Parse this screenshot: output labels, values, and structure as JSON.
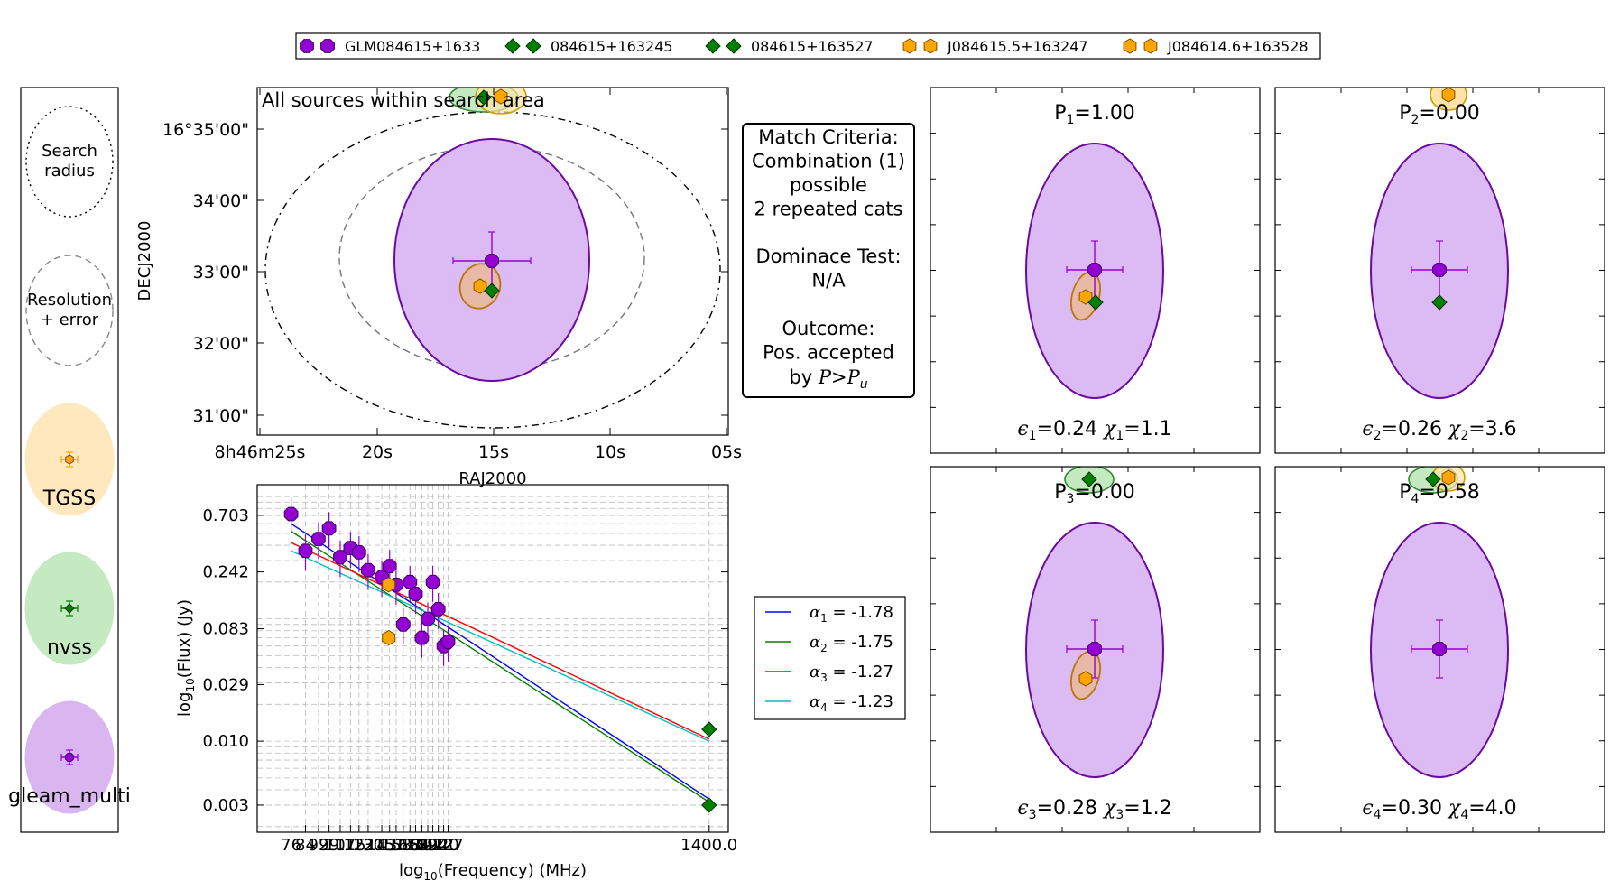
{
  "top_legend": [
    {
      "label": "GLM084615+1633",
      "marker": "octagon",
      "color": "#9400d3"
    },
    {
      "label": "084615+163245",
      "marker": "diamond",
      "color": "#008000"
    },
    {
      "label": "084615+163527",
      "marker": "diamond",
      "color": "#008000"
    },
    {
      "label": "J084615.5+163247",
      "marker": "hexagon",
      "color": "#ffa500"
    },
    {
      "label": "J084614.6+163528",
      "marker": "hexagon",
      "color": "#ffa500"
    }
  ],
  "key_panel": {
    "items": [
      {
        "label": "Search radius",
        "style": "dotted-ellipse"
      },
      {
        "label": "Resolution + error",
        "style": "dashed-ellipse"
      },
      {
        "label": "TGSS",
        "fill": "#ffe8bd",
        "marker_color": "#ffa500"
      },
      {
        "label": "nvss",
        "fill": "#c5e9c0",
        "marker_color": "#008000"
      },
      {
        "label": "gleam_multi",
        "fill": "#d9b6f0",
        "marker_color": "#9400d3"
      }
    ]
  },
  "sky_panel": {
    "annotation": "All sources within search area",
    "xlabel": "RAJ2000",
    "ylabel": "DECJ2000",
    "xticks": [
      "8h46m25s",
      "20s",
      "15s",
      "10s",
      "05s"
    ],
    "yticks": [
      "16°35'00\"",
      "34'00\"",
      "33'00\"",
      "32'00\"",
      "31'00\""
    ]
  },
  "criteria": {
    "lines_top": [
      "Match Criteria:",
      "Combination (1)",
      "possible",
      "2 repeated cats"
    ],
    "lines_mid": [
      "Dominace Test:",
      "N/A"
    ],
    "lines_bot": [
      "Outcome:",
      "Pos. accepted"
    ],
    "last_prefix": "by ",
    "last_var": "P",
    "last_op": ">",
    "last_sub": "u"
  },
  "chart_data": {
    "type": "scatter",
    "xlabel_main": "log",
    "xlabel_sub": "10",
    "xlabel_rest": "(Frequency) (MHz)",
    "ylabel_main": "log",
    "ylabel_sub": "10",
    "ylabel_rest": "(Flux) (Jy)",
    "x_tick_labels": [
      "76",
      "84",
      "92",
      "99",
      "107",
      "115",
      "122",
      "130",
      "143",
      "151",
      "158",
      "166",
      "174",
      "181",
      "189",
      "197",
      "204",
      "212",
      "220",
      "227",
      "1400.0"
    ],
    "y_tick_labels": [
      "0.703",
      "0.242",
      "0.083",
      "0.029",
      "0.010",
      "0.003"
    ],
    "y_tick_values": [
      0.703,
      0.242,
      0.083,
      0.029,
      0.01,
      0.003
    ],
    "series": [
      {
        "name": "GLM084615+1633",
        "color": "#9400d3",
        "marker": "octagon",
        "points": [
          [
            76,
            0.72
          ],
          [
            84,
            0.36
          ],
          [
            92,
            0.45
          ],
          [
            99,
            0.55
          ],
          [
            107,
            0.32
          ],
          [
            115,
            0.38
          ],
          [
            122,
            0.35
          ],
          [
            130,
            0.25
          ],
          [
            143,
            0.22
          ],
          [
            151,
            0.27
          ],
          [
            158,
            0.19
          ],
          [
            166,
            0.09
          ],
          [
            174,
            0.2
          ],
          [
            181,
            0.16
          ],
          [
            189,
            0.07
          ],
          [
            197,
            0.1
          ],
          [
            204,
            0.2
          ],
          [
            212,
            0.12
          ],
          [
            220,
            0.06
          ],
          [
            227,
            0.065
          ]
        ]
      },
      {
        "name": "084615+163245",
        "color": "#008000",
        "marker": "diamond",
        "points": [
          [
            1400,
            0.003
          ]
        ]
      },
      {
        "name": "084615+163527",
        "color": "#008000",
        "marker": "diamond",
        "points": [
          [
            1400,
            0.0125
          ]
        ]
      },
      {
        "name": "J084615.5+163247",
        "color": "#ffa500",
        "marker": "hexagon",
        "points": [
          [
            150,
            0.07
          ]
        ]
      },
      {
        "name": "J084614.6+163528",
        "color": "#ffa500",
        "marker": "hexagon",
        "points": [
          [
            150,
            0.19
          ]
        ]
      }
    ],
    "fits": [
      {
        "label": "= -1.78",
        "sub": "1",
        "alpha": -1.78,
        "color": "#0000ff",
        "start": [
          76,
          0.6
        ]
      },
      {
        "label": "= -1.75",
        "sub": "2",
        "alpha": -1.75,
        "color": "#008000",
        "start": [
          76,
          0.52
        ]
      },
      {
        "label": "= -1.27",
        "sub": "3",
        "alpha": -1.27,
        "color": "#ff0000",
        "start": [
          76,
          0.42
        ]
      },
      {
        "label": "= -1.23",
        "sub": "4",
        "alpha": -1.23,
        "color": "#00bfbf",
        "start": [
          76,
          0.36
        ]
      }
    ],
    "xscale": "log",
    "yscale": "log",
    "grid": true,
    "legend_position": "right"
  },
  "combo_panels": [
    {
      "p_label": "=1.00",
      "p_sub": "1",
      "eps": "=0.24",
      "eps_sub": "1",
      "chi": "=1.1",
      "chi_sub": "1"
    },
    {
      "p_label": "=0.00",
      "p_sub": "2",
      "eps": "=0.26",
      "eps_sub": "2",
      "chi": "=3.6",
      "chi_sub": "2"
    },
    {
      "p_label": "=0.00",
      "p_sub": "3",
      "eps": "=0.28",
      "eps_sub": "3",
      "chi": "=1.2",
      "chi_sub": "3"
    },
    {
      "p_label": "=0.58",
      "p_sub": "4",
      "eps": "=0.30",
      "eps_sub": "4",
      "chi": "=4.0",
      "chi_sub": "4"
    }
  ]
}
